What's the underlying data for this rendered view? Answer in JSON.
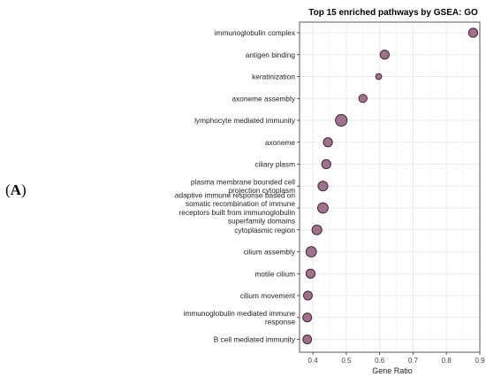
{
  "panel_label": {
    "open": "(",
    "letter": "A",
    "close": ")"
  },
  "colors": {
    "point_fill": "#a0708c",
    "point_stroke": "#3a2a35",
    "grid": "#e6e6e6",
    "axis": "#333333"
  },
  "chart_data": {
    "type": "scatter",
    "title": "Top 15 enriched pathways by GSEA: GO",
    "xlabel": "Gene Ratio",
    "ylabel": "",
    "xlim": [
      0.36,
      0.9
    ],
    "x_ticks": [
      0.4,
      0.5,
      0.6,
      0.7,
      0.8,
      0.9
    ],
    "x_tick_labels": [
      "0.4",
      "0.5",
      "0.6",
      "0.7",
      "0.8",
      "0.9"
    ],
    "grid": true,
    "legend": "none",
    "points": [
      {
        "label": [
          "immunoglobulin complex"
        ],
        "x": 0.88,
        "size": 2
      },
      {
        "label": [
          "antigen binding"
        ],
        "x": 0.615,
        "size": 2
      },
      {
        "label": [
          "keratinization"
        ],
        "x": 0.597,
        "size": 0.5
      },
      {
        "label": [
          "axoneme assembly"
        ],
        "x": 0.55,
        "size": 1.5
      },
      {
        "label": [
          "lymphocyte mediated immunity"
        ],
        "x": 0.485,
        "size": 4
      },
      {
        "label": [
          "axoneme"
        ],
        "x": 0.445,
        "size": 2
      },
      {
        "label": [
          "ciliary plasm"
        ],
        "x": 0.44,
        "size": 2
      },
      {
        "label": [
          "plasma membrane bounded cell",
          "projection cytoplasm"
        ],
        "x": 0.43,
        "size": 2.5
      },
      {
        "label": [
          "adaptive immune response based on",
          "somatic recombination of immune",
          "receptors built from immunoglobulin",
          "superfamily domains"
        ],
        "x": 0.43,
        "size": 3
      },
      {
        "label": [
          "cytoplasmic region"
        ],
        "x": 0.412,
        "size": 2.5
      },
      {
        "label": [
          "cilium assembly"
        ],
        "x": 0.395,
        "size": 3
      },
      {
        "label": [
          "motile cilium"
        ],
        "x": 0.393,
        "size": 2
      },
      {
        "label": [
          "cilium movement"
        ],
        "x": 0.385,
        "size": 1.8
      },
      {
        "label": [
          "immunoglobulin mediated immune",
          "response"
        ],
        "x": 0.383,
        "size": 1.8
      },
      {
        "label": [
          "B cell mediated immunity"
        ],
        "x": 0.383,
        "size": 1.8
      }
    ]
  }
}
